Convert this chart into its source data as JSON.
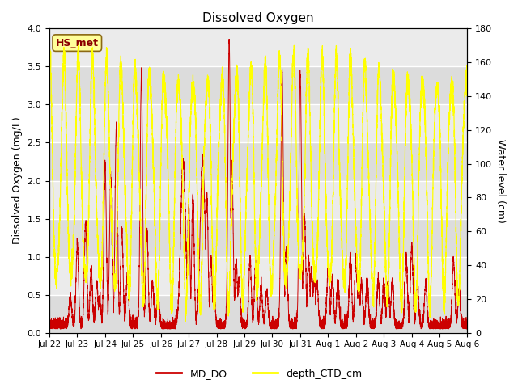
{
  "title": "Dissolved Oxygen",
  "ylabel_left": "Dissolved Oxygen (mg/L)",
  "ylabel_right": "Water level (cm)",
  "ylim_left": [
    0.0,
    4.0
  ],
  "ylim_right": [
    0,
    180
  ],
  "annotation": "HS_met",
  "annotation_color": "#8B0000",
  "annotation_bg": "#FFFF99",
  "legend_labels": [
    "MD_DO",
    "depth_CTD_cm"
  ],
  "line_color_do": "#CC0000",
  "line_color_depth": "#FFFF00",
  "plot_bg_dark": "#DCDCDC",
  "plot_bg_light": "#F0F0F0",
  "n_points": 7200,
  "x_tick_labels": [
    "Jul 22",
    "Jul 23",
    "Jul 24",
    "Jul 25",
    "Jul 26",
    "Jul 27",
    "Jul 28",
    "Jul 29",
    "Jul 30",
    "Jul 31",
    "Aug 1",
    "Aug 2",
    "Aug 3",
    "Aug 4",
    "Aug 5",
    "Aug 6"
  ]
}
